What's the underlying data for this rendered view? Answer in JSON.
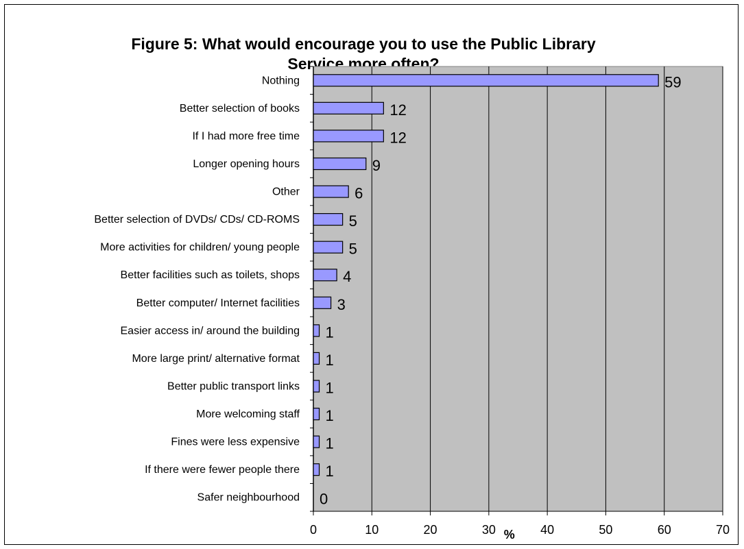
{
  "chart_data": {
    "type": "bar",
    "orientation": "horizontal",
    "title_line1": "Figure 5: What would encourage you to use the Public Library",
    "title_line2": "Service more often?",
    "xlabel": "%",
    "ylabel": "",
    "xlim": [
      0,
      70
    ],
    "xticks": [
      0,
      10,
      20,
      30,
      40,
      50,
      60,
      70
    ],
    "grid": "vertical",
    "legend": "none",
    "categories": [
      "Nothing",
      "Better selection of books",
      "If I had more free time",
      "Longer opening hours",
      "Other",
      "Better selection of DVDs/ CDs/ CD-ROMS",
      "More activities for children/ young people",
      "Better facilities such as toilets, shops",
      "Better computer/ Internet facilities",
      "Easier access in/ around the building",
      "More large print/ alternative format",
      "Better public transport links",
      "More welcoming staff",
      "Fines were less expensive",
      "If there were fewer people there",
      "Safer neighbourhood"
    ],
    "values": [
      59,
      12,
      12,
      9,
      6,
      5,
      5,
      4,
      3,
      1,
      1,
      1,
      1,
      1,
      1,
      0
    ],
    "colors": {
      "bar_fill": "#9999ff",
      "bar_stroke": "#000000",
      "plot_background": "#c0c0c0",
      "gridline": "#000000"
    }
  }
}
